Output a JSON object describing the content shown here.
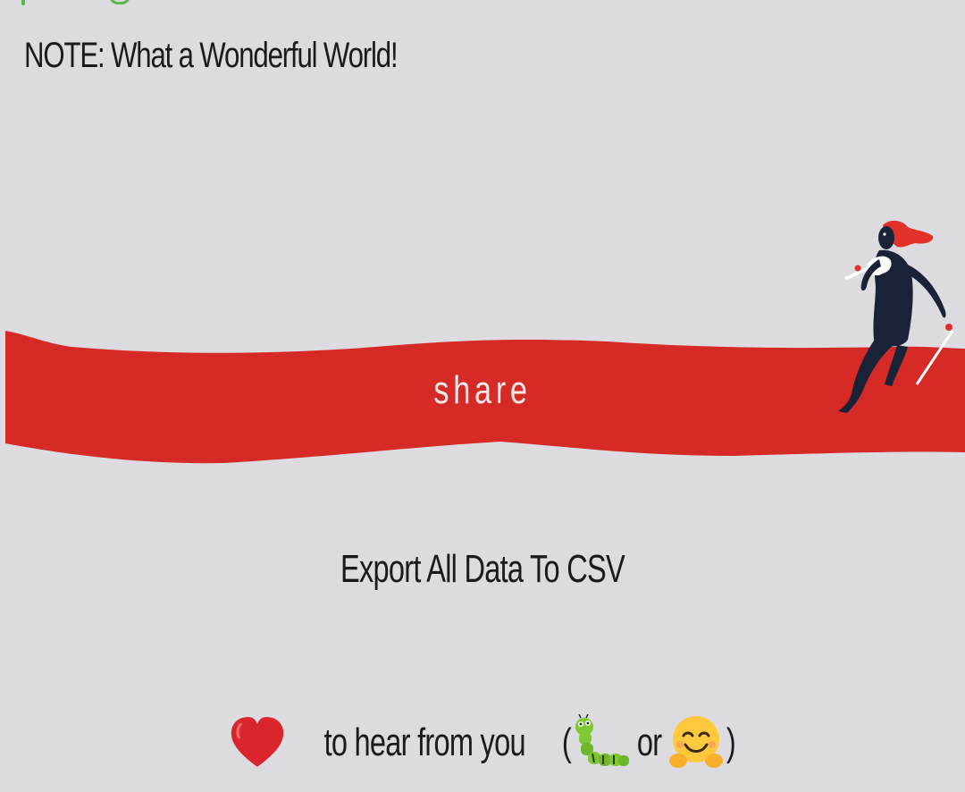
{
  "note": "NOTE: What a Wonderful World!",
  "share": {
    "label": "share"
  },
  "export": {
    "label": "Export All Data To CSV"
  },
  "footer": {
    "text_before": "to hear from you",
    "open_paren": "(",
    "or": "or",
    "close_paren": ")",
    "icons": [
      "heart-emoji",
      "bug-emoji",
      "hugging-face-emoji"
    ]
  },
  "colors": {
    "background": "#dcdbe0",
    "band": "#d62a27",
    "text": "#1b1b1f",
    "share_text": "#f3e9e6",
    "accent_green": "#58b84b"
  }
}
